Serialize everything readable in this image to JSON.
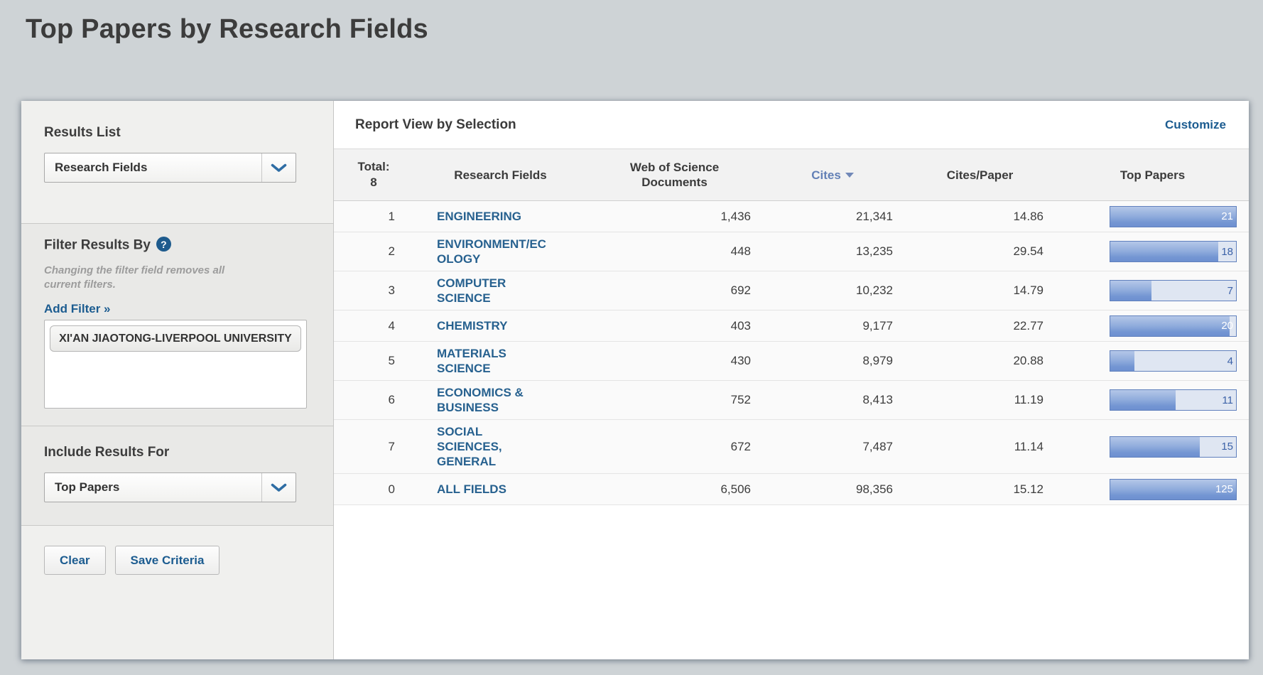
{
  "page": {
    "title": "Top Papers by Research Fields"
  },
  "sidebar": {
    "results_list": {
      "label": "Results List",
      "selected": "Research Fields"
    },
    "filter": {
      "label": "Filter Results By",
      "help_icon": "?",
      "note": "Changing the filter field removes all current filters.",
      "add_filter_label": "Add Filter »",
      "filters": [
        "XI'AN JIAOTONG-LIVERPOOL UNIVERSITY"
      ]
    },
    "include_results": {
      "label": "Include Results For",
      "selected": "Top Papers"
    },
    "buttons": {
      "clear": "Clear",
      "save": "Save Criteria"
    }
  },
  "report": {
    "title": "Report View by Selection",
    "customize_label": "Customize",
    "total_label": "Total:",
    "total_value": "8",
    "columns": {
      "field": "Research Fields",
      "wos": "Web of Science Documents",
      "cites": "Cites",
      "cpp": "Cites/Paper",
      "top": "Top Papers"
    },
    "sorted_by": "Cites",
    "sort_direction": "descending"
  },
  "chart_data": {
    "type": "table",
    "title": "Report View by Selection",
    "columns": [
      "Rank",
      "Research Fields",
      "Web of Science Documents",
      "Cites",
      "Cites/Paper",
      "Top Papers"
    ],
    "bar_scale_note": "Top Papers bars scaled to max ranked value 21, percent read from pixels",
    "rows": [
      {
        "rank": "1",
        "field": "ENGINEERING",
        "wos_documents": "1,436",
        "cites": "21,341",
        "cites_per_paper": "14.86",
        "top_papers": "21",
        "bar_pct": 100
      },
      {
        "rank": "2",
        "field": "ENVIRONMENT/ECOLOGY",
        "wos_documents": "448",
        "cites": "13,235",
        "cites_per_paper": "29.54",
        "top_papers": "18",
        "bar_pct": 86
      },
      {
        "rank": "3",
        "field": "COMPUTER SCIENCE",
        "wos_documents": "692",
        "cites": "10,232",
        "cites_per_paper": "14.79",
        "top_papers": "7",
        "bar_pct": 33
      },
      {
        "rank": "4",
        "field": "CHEMISTRY",
        "wos_documents": "403",
        "cites": "9,177",
        "cites_per_paper": "22.77",
        "top_papers": "20",
        "bar_pct": 95
      },
      {
        "rank": "5",
        "field": "MATERIALS SCIENCE",
        "wos_documents": "430",
        "cites": "8,979",
        "cites_per_paper": "20.88",
        "top_papers": "4",
        "bar_pct": 19
      },
      {
        "rank": "6",
        "field": "ECONOMICS & BUSINESS",
        "wos_documents": "752",
        "cites": "8,413",
        "cites_per_paper": "11.19",
        "top_papers": "11",
        "bar_pct": 52
      },
      {
        "rank": "7",
        "field": "SOCIAL SCIENCES, GENERAL",
        "wos_documents": "672",
        "cites": "7,487",
        "cites_per_paper": "11.14",
        "top_papers": "15",
        "bar_pct": 71
      },
      {
        "rank": "0",
        "field": "ALL FIELDS",
        "wos_documents": "6,506",
        "cites": "98,356",
        "cites_per_paper": "15.12",
        "top_papers": "125",
        "bar_pct": 100
      }
    ]
  }
}
